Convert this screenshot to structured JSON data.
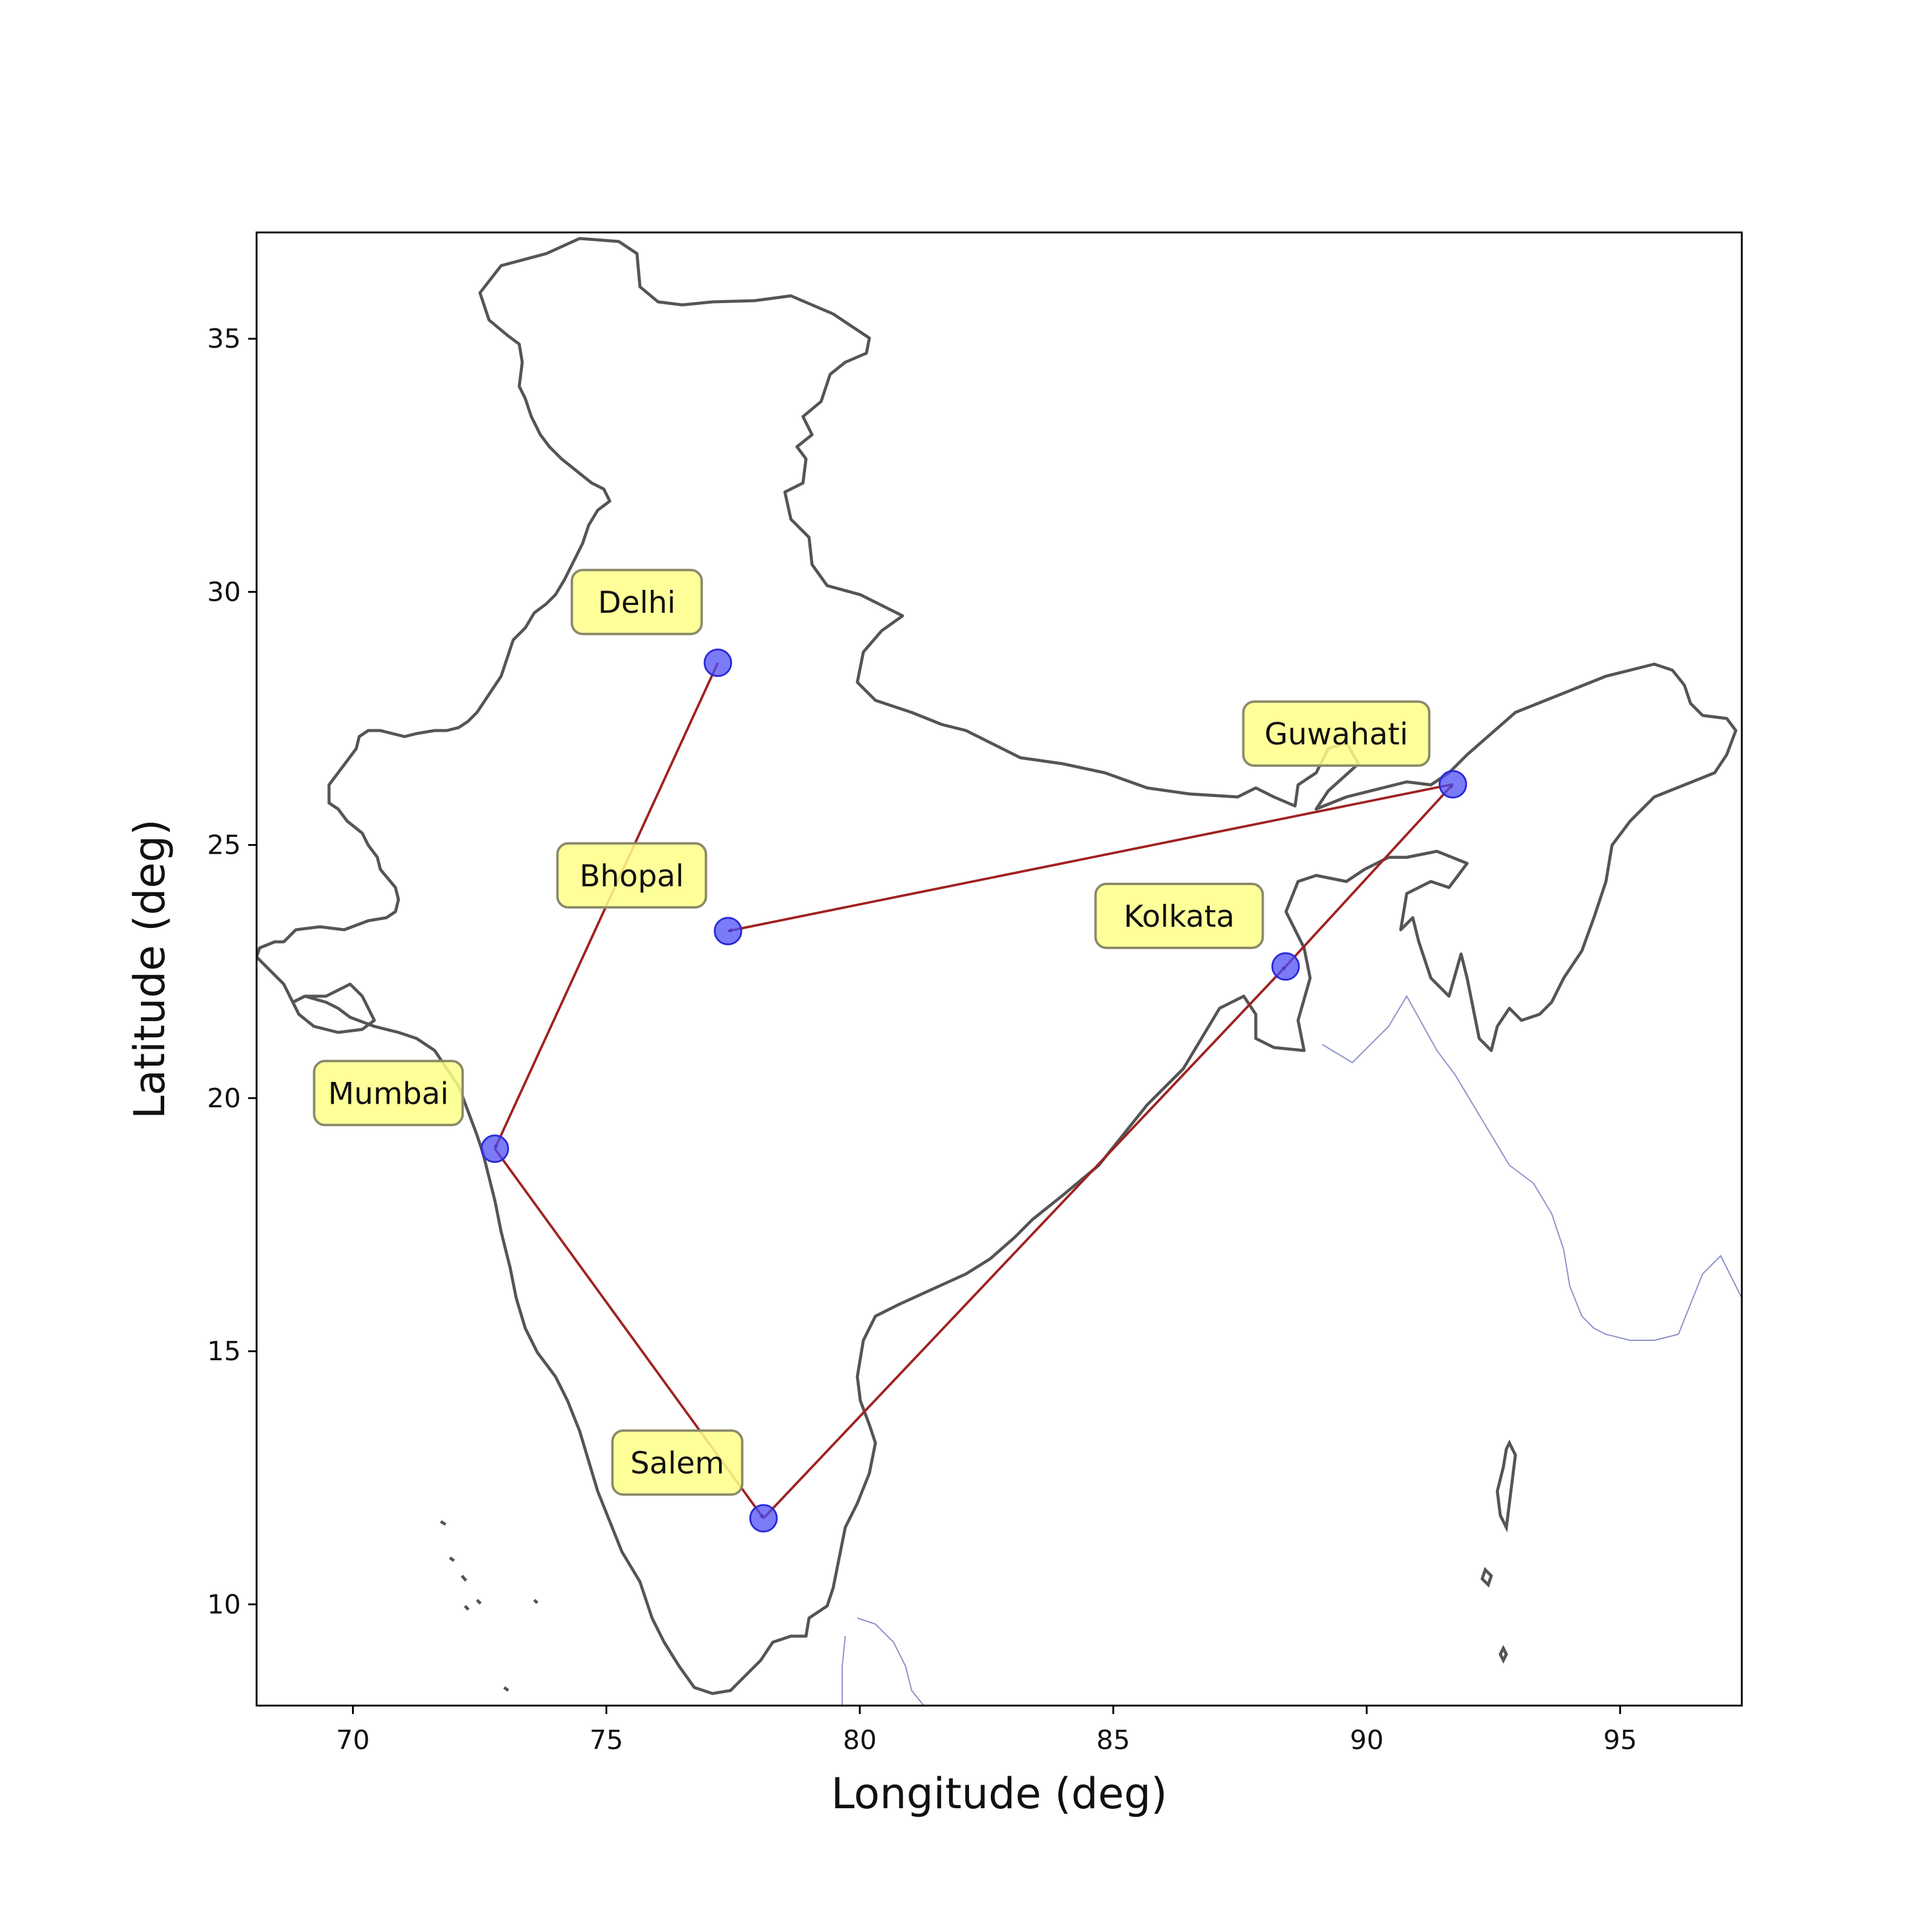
{
  "chart_data": {
    "type": "scatter",
    "title": "",
    "xlabel": "Longitude (deg)",
    "ylabel": "Latitude (deg)",
    "xlim": [
      68.1,
      97.4
    ],
    "ylim": [
      8.0,
      37.1
    ],
    "xticks": [
      70,
      75,
      80,
      85,
      90,
      95
    ],
    "yticks": [
      10,
      15,
      20,
      25,
      30,
      35
    ],
    "grid": false,
    "points": [
      {
        "name": "Delhi",
        "lon": 77.2,
        "lat": 28.6,
        "label_lon": 75.6,
        "label_lat": 29.8
      },
      {
        "name": "Bhopal",
        "lon": 77.4,
        "lat": 23.3,
        "label_lon": 75.5,
        "label_lat": 24.4
      },
      {
        "name": "Mumbai",
        "lon": 72.8,
        "lat": 19.0,
        "label_lon": 70.7,
        "label_lat": 20.1
      },
      {
        "name": "Salem",
        "lon": 78.1,
        "lat": 11.7,
        "label_lon": 76.4,
        "label_lat": 12.8
      },
      {
        "name": "Kolkata",
        "lon": 88.4,
        "lat": 22.6,
        "label_lon": 86.3,
        "label_lat": 23.6
      },
      {
        "name": "Guwahati",
        "lon": 91.7,
        "lat": 26.2,
        "label_lon": 89.4,
        "label_lat": 27.2
      }
    ],
    "route": [
      {
        "from": "Delhi",
        "to": "Mumbai"
      },
      {
        "from": "Mumbai",
        "to": "Salem"
      },
      {
        "from": "Salem",
        "to": "Kolkata"
      },
      {
        "from": "Kolkata",
        "to": "Guwahati"
      },
      {
        "from": "Guwahati",
        "to": "Bhopal"
      }
    ],
    "colors": {
      "marker": "#4f4ff5",
      "route": "#a02222",
      "coastline": "#555555",
      "label_box": "#ffff88",
      "neighbor_coast": "#8a8fc8"
    }
  }
}
